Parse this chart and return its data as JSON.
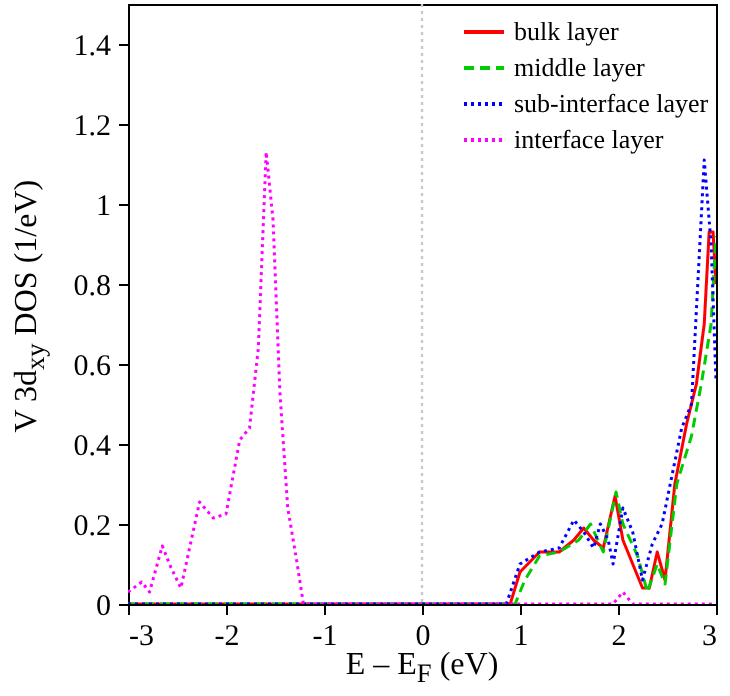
{
  "chart_data": {
    "type": "line",
    "xlabel": "E – E$_{F}$ (eV)",
    "ylabel": "V 3d$_{xy}$ DOS (1/eV)",
    "xlim": [
      -3,
      3
    ],
    "ylim": [
      0,
      1.5
    ],
    "xticks": [
      -3,
      -2,
      -1,
      0,
      1,
      2,
      3
    ],
    "yticks": [
      0,
      0.2,
      0.4,
      0.6,
      0.8,
      1,
      1.2,
      1.4
    ],
    "legend": "top right",
    "grid": false,
    "ref_lines": [
      {
        "axis": "x",
        "value": 0,
        "color": "#c8c8c8",
        "line_style": "dotted"
      }
    ],
    "series": [
      {
        "name": "bulk layer",
        "color": "#ff0000",
        "line_style": "solid",
        "x": [
          -3,
          0.9,
          1.0,
          1.2,
          1.4,
          1.55,
          1.65,
          1.75,
          1.85,
          1.97,
          2.05,
          2.15,
          2.25,
          2.32,
          2.4,
          2.48,
          2.58,
          2.7,
          2.8,
          2.88,
          2.93,
          2.97,
          3
        ],
        "values": [
          0,
          0,
          0.08,
          0.13,
          0.13,
          0.16,
          0.19,
          0.16,
          0.14,
          0.27,
          0.16,
          0.1,
          0.04,
          0.04,
          0.13,
          0.06,
          0.3,
          0.45,
          0.55,
          0.7,
          0.93,
          0.93,
          0.8
        ]
      },
      {
        "name": "middle layer",
        "color": "#00cc00",
        "line_style": "dashed",
        "x": [
          -3,
          0.95,
          1.05,
          1.2,
          1.4,
          1.6,
          1.72,
          1.85,
          1.98,
          2.05,
          2.2,
          2.3,
          2.4,
          2.48,
          2.6,
          2.75,
          2.85,
          2.95,
          3
        ],
        "values": [
          0,
          0,
          0.06,
          0.12,
          0.13,
          0.16,
          0.2,
          0.13,
          0.28,
          0.2,
          0.12,
          0.03,
          0.1,
          0.05,
          0.3,
          0.42,
          0.55,
          0.7,
          0.92
        ]
      },
      {
        "name": "sub-interface layer",
        "color": "#0000ff",
        "line_style": "dotted",
        "x": [
          -3,
          0.86,
          1.0,
          1.2,
          1.4,
          1.55,
          1.65,
          1.75,
          1.82,
          1.9,
          1.95,
          2.05,
          2.15,
          2.25,
          2.35,
          2.45,
          2.55,
          2.65,
          2.75,
          2.88,
          2.95,
          3
        ],
        "values": [
          0,
          0,
          0.1,
          0.13,
          0.14,
          0.21,
          0.18,
          0.14,
          0.2,
          0.16,
          0.1,
          0.24,
          0.18,
          0.06,
          0.15,
          0.2,
          0.32,
          0.44,
          0.5,
          1.11,
          0.9,
          0.56
        ]
      },
      {
        "name": "interface layer",
        "color": "#ff00ff",
        "line_style": "dotted",
        "x": [
          -3,
          -2.86,
          -2.78,
          -2.65,
          -2.56,
          -2.46,
          -2.27,
          -2.13,
          -2.0,
          -1.86,
          -1.76,
          -1.67,
          -1.59,
          -1.52,
          -1.45,
          -1.37,
          -1.28,
          -1.21,
          1.95,
          2.05,
          2.15,
          3
        ],
        "values": [
          0.03,
          0.055,
          0.03,
          0.145,
          0.09,
          0.04,
          0.255,
          0.215,
          0.225,
          0.41,
          0.44,
          0.64,
          1.13,
          0.96,
          0.53,
          0.24,
          0.11,
          0,
          0,
          0.03,
          0,
          0
        ]
      }
    ]
  }
}
